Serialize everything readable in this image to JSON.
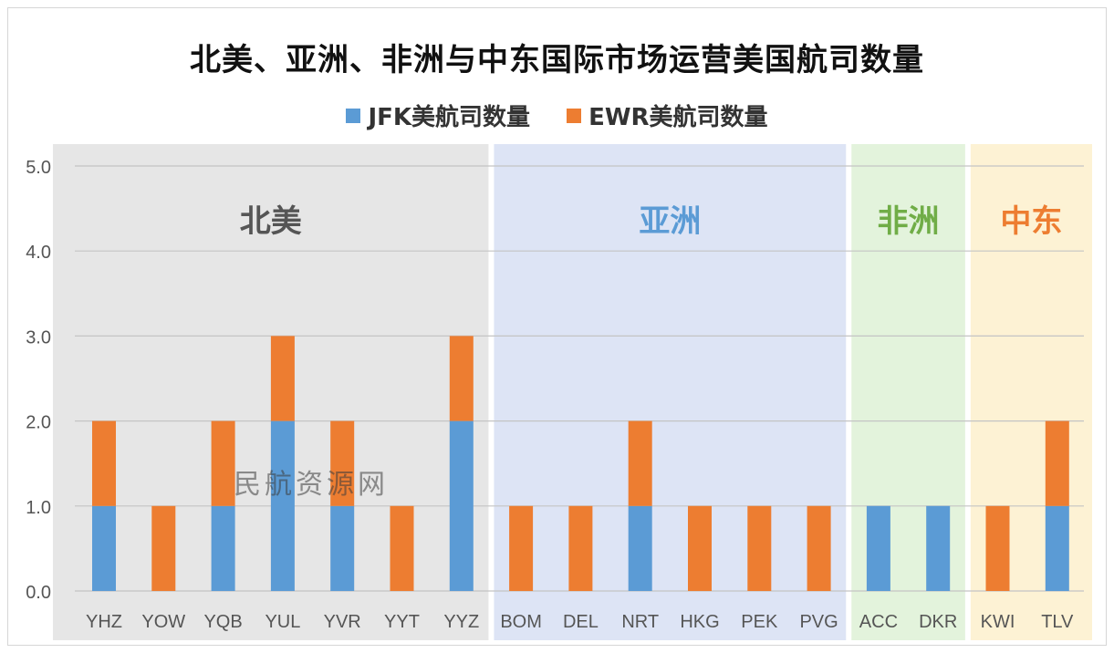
{
  "watermark": "民航资源网",
  "chart_data": {
    "type": "bar",
    "stacked": true,
    "title": "北美、亚洲、非洲与中东国际市场运营美国航司数量",
    "categories": [
      "YHZ",
      "YOW",
      "YQB",
      "YUL",
      "YVR",
      "YYT",
      "YYZ",
      "BOM",
      "DEL",
      "NRT",
      "HKG",
      "PEK",
      "PVG",
      "ACC",
      "DKR",
      "KWI",
      "TLV"
    ],
    "series": [
      {
        "name": "JFK美航司数量",
        "color": "#5b9bd5",
        "values": [
          1,
          0,
          1,
          2,
          1,
          0,
          2,
          0,
          0,
          1,
          0,
          0,
          0,
          1,
          1,
          0,
          1
        ]
      },
      {
        "name": "EWR美航司数量",
        "color": "#ed7d31",
        "values": [
          1,
          1,
          1,
          1,
          1,
          1,
          1,
          1,
          1,
          1,
          1,
          1,
          1,
          0,
          0,
          1,
          1
        ]
      }
    ],
    "ylim": [
      0,
      5
    ],
    "yticks": [
      "0.0",
      "1.0",
      "2.0",
      "3.0",
      "4.0",
      "5.0"
    ],
    "grid": true,
    "legend": "top",
    "regions": [
      {
        "label": "北美",
        "start": 0,
        "end": 6,
        "bg": "#e6e6e6",
        "color": "#555555"
      },
      {
        "label": "亚洲",
        "start": 7,
        "end": 12,
        "bg": "#dde4f5",
        "color": "#5b9bd5"
      },
      {
        "label": "非洲",
        "start": 13,
        "end": 14,
        "bg": "#e3f3dc",
        "color": "#70ad47"
      },
      {
        "label": "中东",
        "start": 15,
        "end": 16,
        "bg": "#fdf2d4",
        "color": "#ed7d31"
      }
    ]
  }
}
